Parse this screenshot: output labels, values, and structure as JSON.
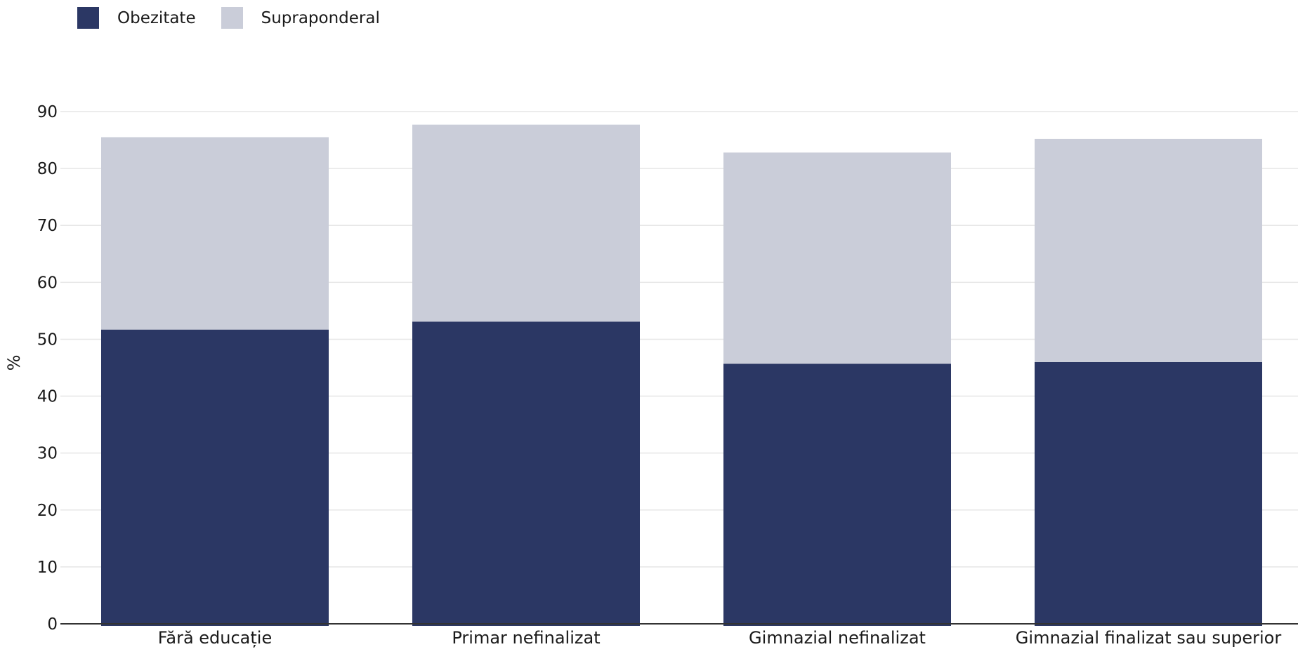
{
  "chart_data": {
    "type": "bar",
    "stacked": true,
    "title": "",
    "xlabel": "",
    "ylabel": "%",
    "ylim": [
      0,
      90
    ],
    "yticks": [
      0,
      10,
      20,
      30,
      40,
      50,
      60,
      70,
      80,
      90
    ],
    "grid": true,
    "legend_position": "top-left",
    "categories": [
      "Fără educație",
      "Primar nefinalizat",
      "Gimnazial nefinalizat",
      "Gimnazial finalizat sau superior"
    ],
    "series": [
      {
        "name": "Obezitate",
        "color": "#2b3764",
        "values": [
          51.7,
          53.1,
          45.7,
          46.0
        ]
      },
      {
        "name": "Supraponderal",
        "color": "#cacdd9",
        "values": [
          33.8,
          34.6,
          37.1,
          39.2
        ]
      }
    ]
  }
}
